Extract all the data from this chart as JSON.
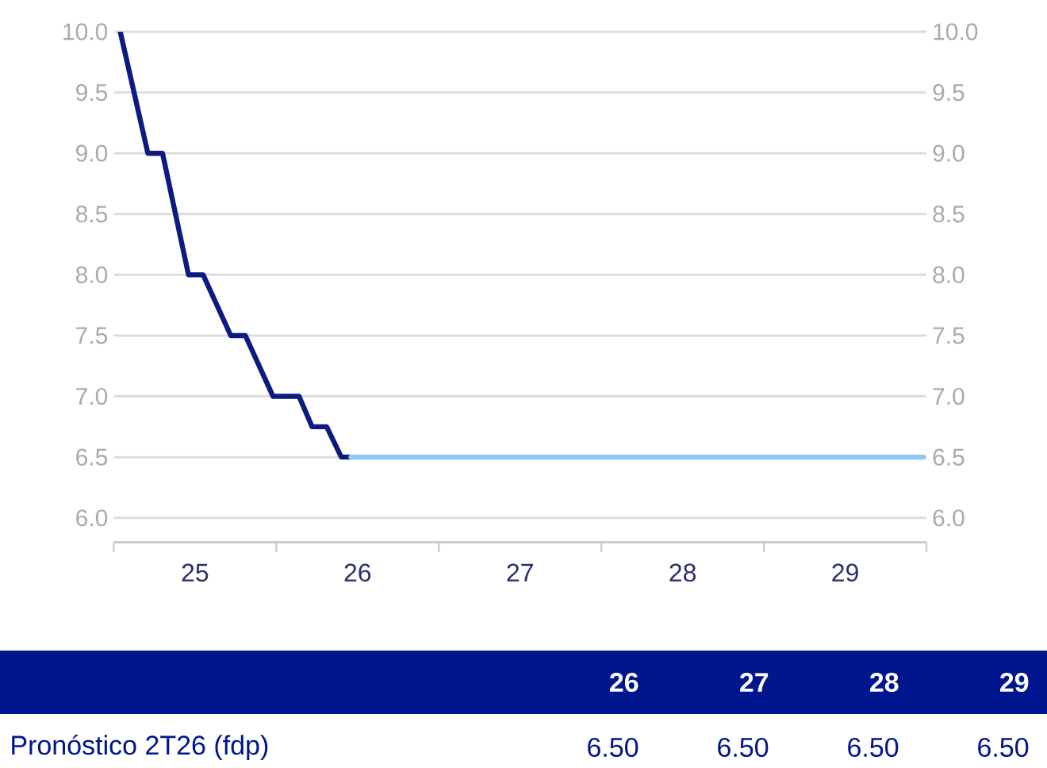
{
  "chart_data": {
    "type": "line",
    "series": [
      {
        "color": "#0d1b80",
        "x": [
          24.54,
          24.71,
          24.8,
          24.96,
          25.05,
          25.22,
          25.31,
          25.48,
          25.64,
          25.72,
          25.81,
          25.9,
          25.96
        ],
        "values": [
          10.0,
          9.0,
          9.0,
          8.0,
          8.0,
          7.5,
          7.5,
          7.0,
          7.0,
          6.75,
          6.75,
          6.5,
          6.5
        ]
      },
      {
        "color": "#8cc8f0",
        "x": [
          25.96,
          29.48
        ],
        "values": [
          6.5,
          6.5
        ]
      }
    ],
    "xlim": [
      24.5,
      29.5
    ],
    "xticks": [
      {
        "value": 24.5,
        "label": null
      },
      25,
      {
        "value": 25.5,
        "label": null
      },
      26,
      {
        "value": 26.5,
        "label": null
      },
      27,
      {
        "value": 27.5,
        "label": null
      },
      28,
      {
        "value": 28.5,
        "label": null
      },
      29,
      {
        "value": 29.5,
        "label": null
      }
    ],
    "ylim": [
      5.8,
      10.0
    ],
    "yticks": [
      {
        "value": 6,
        "label": "6.0"
      },
      {
        "value": 6.5,
        "label": "6.5"
      },
      {
        "value": 7,
        "label": "7.0"
      },
      {
        "value": 7.5,
        "label": "7.5"
      },
      {
        "value": 8,
        "label": "8.0"
      },
      {
        "value": 8.5,
        "label": "8.5"
      },
      {
        "value": 9,
        "label": "9.0"
      },
      {
        "value": 9.5,
        "label": "9.5"
      },
      {
        "value": 10,
        "label": "10.0"
      }
    ],
    "y2lim": [
      5.8,
      10.0
    ],
    "y2ticks": [
      {
        "value": 6,
        "label": "6.0"
      },
      {
        "value": 6.5,
        "label": "6.5"
      },
      {
        "value": 7,
        "label": "7.0"
      },
      {
        "value": 7.5,
        "label": "7.5"
      },
      {
        "value": 8,
        "label": "8.0"
      },
      {
        "value": 8.5,
        "label": "8.5"
      },
      {
        "value": 9,
        "label": "9.0"
      },
      {
        "value": 9.5,
        "label": "9.5"
      },
      {
        "value": 10,
        "label": "10.0"
      }
    ],
    "grid": "y",
    "annotations": [
      "26",
      "27",
      "28",
      "29",
      "Pronóstico 2T26 (fdp)",
      "6.50",
      "6.50",
      "6.50",
      "6.50"
    ]
  }
}
